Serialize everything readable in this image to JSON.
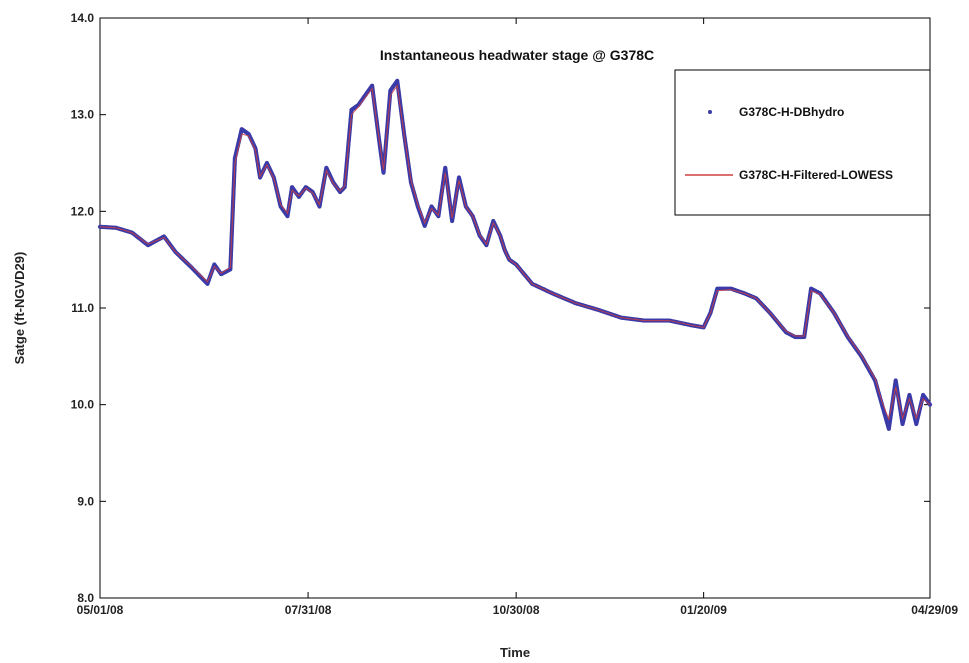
{
  "chart_data": {
    "type": "line",
    "title": "Instantaneous headwater stage @ G378C",
    "xlabel": "Time",
    "ylabel": "Satge (ft-NGVD29)",
    "xlim": [
      "05/01/08",
      "04/29/09"
    ],
    "ylim": [
      8.0,
      14.0
    ],
    "x_tick_labels": [
      "05/01/08",
      "07/31/08",
      "10/30/08",
      "01/20/09",
      "04/29/09"
    ],
    "y_tick_labels": [
      "8.0",
      "9.0",
      "10.0",
      "11.0",
      "12.0",
      "13.0",
      "14.0"
    ],
    "grid": false,
    "legend_position": "top-right",
    "colors": {
      "raw": "#3a3aa8",
      "filtered": "#d04040",
      "axis": "#000000"
    },
    "series": [
      {
        "name": "G378C-H-DBhydro",
        "style": "points",
        "x": [
          "2008-05-01",
          "2008-05-08",
          "2008-05-15",
          "2008-05-22",
          "2008-05-29",
          "2008-06-03",
          "2008-06-10",
          "2008-06-17",
          "2008-06-20",
          "2008-06-23",
          "2008-06-27",
          "2008-06-29",
          "2008-07-02",
          "2008-07-05",
          "2008-07-08",
          "2008-07-10",
          "2008-07-13",
          "2008-07-16",
          "2008-07-19",
          "2008-07-22",
          "2008-07-24",
          "2008-07-27",
          "2008-07-30",
          "2008-08-02",
          "2008-08-05",
          "2008-08-08",
          "2008-08-11",
          "2008-08-14",
          "2008-08-16",
          "2008-08-19",
          "2008-08-22",
          "2008-08-25",
          "2008-08-28",
          "2008-08-31",
          "2008-09-02",
          "2008-09-05",
          "2008-09-08",
          "2008-09-11",
          "2008-09-14",
          "2008-09-17",
          "2008-09-20",
          "2008-09-23",
          "2008-09-26",
          "2008-09-29",
          "2008-10-02",
          "2008-10-05",
          "2008-10-08",
          "2008-10-11",
          "2008-10-14",
          "2008-10-17",
          "2008-10-20",
          "2008-10-23",
          "2008-10-25",
          "2008-10-27",
          "2008-10-30",
          "2008-11-06",
          "2008-11-15",
          "2008-11-25",
          "2008-12-05",
          "2008-12-15",
          "2008-12-25",
          "2009-01-05",
          "2009-01-15",
          "2009-01-20",
          "2009-01-23",
          "2009-01-26",
          "2009-02-01",
          "2009-02-07",
          "2009-02-12",
          "2009-02-18",
          "2009-02-25",
          "2009-03-01",
          "2009-03-05",
          "2009-03-08",
          "2009-03-12",
          "2009-03-18",
          "2009-03-24",
          "2009-03-30",
          "2009-04-05",
          "2009-04-08",
          "2009-04-11",
          "2009-04-14",
          "2009-04-17",
          "2009-04-20",
          "2009-04-23",
          "2009-04-26",
          "2009-04-29"
        ],
        "values": [
          11.84,
          11.83,
          11.78,
          11.65,
          11.74,
          11.58,
          11.42,
          11.25,
          11.45,
          11.35,
          11.4,
          12.55,
          12.85,
          12.8,
          12.65,
          12.35,
          12.5,
          12.35,
          12.05,
          11.95,
          12.25,
          12.15,
          12.25,
          12.2,
          12.05,
          12.45,
          12.3,
          12.2,
          12.25,
          13.05,
          13.1,
          13.2,
          13.3,
          12.75,
          12.4,
          13.25,
          13.35,
          12.8,
          12.3,
          12.05,
          11.85,
          12.05,
          11.95,
          12.45,
          11.9,
          12.35,
          12.05,
          11.95,
          11.75,
          11.65,
          11.9,
          11.75,
          11.6,
          11.5,
          11.45,
          11.25,
          11.15,
          11.05,
          10.98,
          10.9,
          10.87,
          10.87,
          10.82,
          10.8,
          10.95,
          11.2,
          11.2,
          11.15,
          11.1,
          10.95,
          10.75,
          10.7,
          10.7,
          11.2,
          11.15,
          10.95,
          10.7,
          10.5,
          10.25,
          10.0,
          9.75,
          10.25,
          9.8,
          10.1,
          9.8,
          10.1,
          10.0
        ]
      },
      {
        "name": "G378C-H-Filtered-LOWESS",
        "style": "line",
        "x": [
          "2008-05-01",
          "2008-05-08",
          "2008-05-15",
          "2008-05-22",
          "2008-05-29",
          "2008-06-03",
          "2008-06-10",
          "2008-06-17",
          "2008-06-20",
          "2008-06-23",
          "2008-06-27",
          "2008-06-29",
          "2008-07-02",
          "2008-07-05",
          "2008-07-08",
          "2008-07-10",
          "2008-07-13",
          "2008-07-16",
          "2008-07-19",
          "2008-07-22",
          "2008-07-24",
          "2008-07-27",
          "2008-07-30",
          "2008-08-02",
          "2008-08-05",
          "2008-08-08",
          "2008-08-11",
          "2008-08-14",
          "2008-08-16",
          "2008-08-19",
          "2008-08-22",
          "2008-08-25",
          "2008-08-28",
          "2008-08-31",
          "2008-09-02",
          "2008-09-05",
          "2008-09-08",
          "2008-09-11",
          "2008-09-14",
          "2008-09-17",
          "2008-09-20",
          "2008-09-23",
          "2008-09-26",
          "2008-09-29",
          "2008-10-02",
          "2008-10-05",
          "2008-10-08",
          "2008-10-11",
          "2008-10-14",
          "2008-10-17",
          "2008-10-20",
          "2008-10-23",
          "2008-10-25",
          "2008-10-27",
          "2008-10-30",
          "2008-11-06",
          "2008-11-15",
          "2008-11-25",
          "2008-12-05",
          "2008-12-15",
          "2008-12-25",
          "2009-01-05",
          "2009-01-15",
          "2009-01-20",
          "2009-01-23",
          "2009-01-26",
          "2009-02-01",
          "2009-02-07",
          "2009-02-12",
          "2009-02-18",
          "2009-02-25",
          "2009-03-01",
          "2009-03-05",
          "2009-03-08",
          "2009-03-12",
          "2009-03-18",
          "2009-03-24",
          "2009-03-30",
          "2009-04-05",
          "2009-04-08",
          "2009-04-11",
          "2009-04-14",
          "2009-04-17",
          "2009-04-20",
          "2009-04-23",
          "2009-04-26",
          "2009-04-29"
        ],
        "values": [
          11.84,
          11.83,
          11.78,
          11.66,
          11.73,
          11.58,
          11.43,
          11.27,
          11.43,
          11.36,
          11.42,
          12.5,
          12.8,
          12.78,
          12.63,
          12.36,
          12.48,
          12.34,
          12.07,
          11.98,
          12.22,
          12.16,
          12.24,
          12.19,
          12.07,
          12.42,
          12.29,
          12.21,
          12.26,
          13.0,
          13.08,
          13.18,
          13.27,
          12.76,
          12.43,
          13.2,
          13.3,
          12.8,
          12.32,
          12.07,
          11.88,
          12.03,
          11.96,
          12.4,
          11.93,
          12.32,
          12.05,
          11.95,
          11.76,
          11.66,
          11.88,
          11.75,
          11.6,
          11.5,
          11.45,
          11.25,
          11.15,
          11.05,
          10.98,
          10.9,
          10.87,
          10.87,
          10.82,
          10.8,
          10.95,
          11.18,
          11.19,
          11.15,
          11.1,
          10.95,
          10.76,
          10.71,
          10.71,
          11.18,
          11.14,
          10.95,
          10.71,
          10.51,
          10.27,
          10.03,
          9.85,
          10.18,
          9.86,
          10.06,
          9.86,
          10.06,
          10.0
        ]
      }
    ]
  }
}
